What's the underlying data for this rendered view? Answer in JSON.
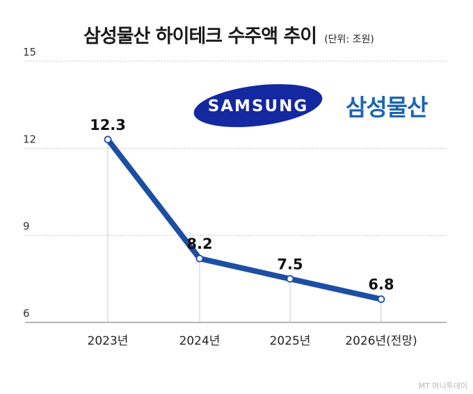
{
  "title": "삼성물산 하이테크 수주액 추이",
  "unit_note": "(단위: 조원)",
  "logos": {
    "samsung_wordmark": "SAMSUNG",
    "brand_korean": "삼성물산"
  },
  "watermark": "MT 머니투데이",
  "colors": {
    "line": "#1c4fa3",
    "brand_blue": "#1c63b4",
    "samsung_blue": "#1428a0",
    "gridline": "#b5b5b5"
  },
  "chart_data": {
    "type": "line",
    "categories": [
      "2023년",
      "2024년",
      "2025년",
      "2026년(전망)"
    ],
    "series": [
      {
        "values": [
          12.3,
          8.2,
          7.5,
          6.8
        ],
        "data_labels": [
          "12.3",
          "8.2",
          "7.5",
          "6.8"
        ]
      }
    ],
    "y_ticks": [
      6,
      9,
      12,
      15
    ],
    "ylim": [
      6,
      15
    ],
    "grid": "horizontal dotted",
    "legend": "none"
  }
}
